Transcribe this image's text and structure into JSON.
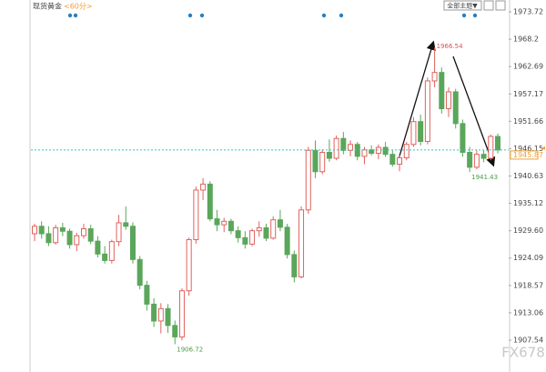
{
  "chart_data": {
    "type": "candlestick",
    "title": "现货黄金",
    "subtitle": "<60分>",
    "theme_button": "全部主题▼",
    "watermark": "FX678",
    "up_color": "#e0625d",
    "down_color": "#5aa65a",
    "price_line_color": "#3cc0c8",
    "last_price_color": "#f0a030",
    "ylim": [
      1901.86,
      1974.64
    ],
    "yticks": [
      1907.54,
      1913.06,
      1918.57,
      1924.09,
      {
        "value": 1929.6,
        "label": "1929.60"
      },
      1935.12,
      1940.63,
      1946.15,
      1951.66,
      1957.17,
      1962.69,
      1968.2,
      1973.72
    ],
    "last_price": 1945.87,
    "annotations": [
      {
        "value": 1966.54,
        "color": "#d9534f"
      },
      {
        "value": 1906.72,
        "color": "#4a9a4a"
      },
      {
        "value": 1941.43,
        "color": "#4a9a4a"
      }
    ],
    "ohlc": [
      [
        1929.0,
        1931.0,
        1927.5,
        1930.5
      ],
      [
        1930.5,
        1931.5,
        1928.0,
        1929.0
      ],
      [
        1929.0,
        1930.5,
        1926.5,
        1927.2
      ],
      [
        1927.2,
        1930.8,
        1926.8,
        1930.2
      ],
      [
        1930.2,
        1931.2,
        1928.5,
        1929.5
      ],
      [
        1929.5,
        1930.0,
        1926.0,
        1926.8
      ],
      [
        1926.8,
        1929.2,
        1925.5,
        1928.6
      ],
      [
        1928.6,
        1931.0,
        1928.0,
        1930.0
      ],
      [
        1930.0,
        1930.8,
        1926.9,
        1927.5
      ],
      [
        1927.5,
        1928.5,
        1924.2,
        1924.9
      ],
      [
        1924.9,
        1926.5,
        1923.0,
        1923.6
      ],
      [
        1923.6,
        1927.8,
        1923.0,
        1927.4
      ],
      [
        1927.4,
        1932.8,
        1926.5,
        1931.2
      ],
      [
        1931.2,
        1934.5,
        1929.8,
        1930.5
      ],
      [
        1930.5,
        1931.3,
        1923.0,
        1923.8
      ],
      [
        1923.8,
        1924.5,
        1917.8,
        1918.6
      ],
      [
        1918.6,
        1919.5,
        1913.5,
        1914.8
      ],
      [
        1914.8,
        1916.0,
        1910.2,
        1911.4
      ],
      [
        1911.4,
        1915.0,
        1908.9,
        1913.9
      ],
      [
        1913.9,
        1914.8,
        1909.0,
        1910.5
      ],
      [
        1910.5,
        1911.5,
        1906.72,
        1908.2
      ],
      [
        1908.2,
        1918.0,
        1907.5,
        1917.5
      ],
      [
        1917.5,
        1928.2,
        1916.5,
        1927.8
      ],
      [
        1927.8,
        1938.5,
        1927.0,
        1937.8
      ],
      [
        1937.8,
        1940.2,
        1935.8,
        1939.0
      ],
      [
        1939.0,
        1939.6,
        1931.5,
        1932.0
      ],
      [
        1932.0,
        1933.8,
        1929.5,
        1930.8
      ],
      [
        1930.8,
        1932.2,
        1929.3,
        1931.5
      ],
      [
        1931.5,
        1932.0,
        1928.9,
        1929.6
      ],
      [
        1929.6,
        1930.5,
        1927.2,
        1928.2
      ],
      [
        1928.2,
        1929.5,
        1926.0,
        1926.9
      ],
      [
        1926.9,
        1930.0,
        1926.5,
        1929.6
      ],
      [
        1929.6,
        1931.5,
        1928.4,
        1930.2
      ],
      [
        1930.2,
        1931.0,
        1927.5,
        1928.1
      ],
      [
        1928.1,
        1932.5,
        1927.8,
        1931.8
      ],
      [
        1931.8,
        1933.8,
        1929.5,
        1930.3
      ],
      [
        1930.3,
        1931.0,
        1924.0,
        1924.8
      ],
      [
        1924.8,
        1925.6,
        1919.2,
        1920.3
      ],
      [
        1920.3,
        1934.5,
        1920.0,
        1933.8
      ],
      [
        1933.8,
        1946.5,
        1933.0,
        1945.8
      ],
      [
        1945.8,
        1947.8,
        1940.2,
        1941.5
      ],
      [
        1941.5,
        1946.0,
        1941.0,
        1945.4
      ],
      [
        1945.4,
        1948.0,
        1943.5,
        1944.2
      ],
      [
        1944.2,
        1948.8,
        1943.8,
        1948.2
      ],
      [
        1948.2,
        1949.5,
        1945.0,
        1945.8
      ],
      [
        1945.8,
        1947.8,
        1944.6,
        1947.0
      ],
      [
        1947.0,
        1947.5,
        1943.8,
        1944.6
      ],
      [
        1944.6,
        1946.5,
        1943.0,
        1945.9
      ],
      [
        1945.9,
        1946.8,
        1944.8,
        1945.2
      ],
      [
        1945.2,
        1947.0,
        1944.0,
        1946.4
      ],
      [
        1946.4,
        1947.5,
        1944.5,
        1945.0
      ],
      [
        1945.0,
        1945.8,
        1942.5,
        1943.0
      ],
      [
        1943.0,
        1944.8,
        1941.6,
        1944.3
      ],
      [
        1944.3,
        1947.5,
        1943.8,
        1947.0
      ],
      [
        1947.0,
        1952.5,
        1946.5,
        1951.6
      ],
      [
        1951.6,
        1953.0,
        1946.8,
        1947.6
      ],
      [
        1947.6,
        1960.5,
        1947.0,
        1959.8
      ],
      [
        1959.8,
        1966.54,
        1958.5,
        1961.5
      ],
      [
        1961.5,
        1962.5,
        1953.2,
        1954.2
      ],
      [
        1954.2,
        1958.5,
        1952.5,
        1957.6
      ],
      [
        1957.6,
        1958.2,
        1950.2,
        1951.2
      ],
      [
        1951.2,
        1952.0,
        1944.5,
        1945.4
      ],
      [
        1945.4,
        1946.5,
        1941.43,
        1942.4
      ],
      [
        1942.4,
        1945.8,
        1942.0,
        1945.0
      ],
      [
        1945.0,
        1945.8,
        1943.4,
        1944.2
      ],
      [
        1944.2,
        1949.0,
        1943.8,
        1948.6
      ],
      [
        1948.6,
        1949.2,
        1945.2,
        1945.87
      ]
    ]
  }
}
